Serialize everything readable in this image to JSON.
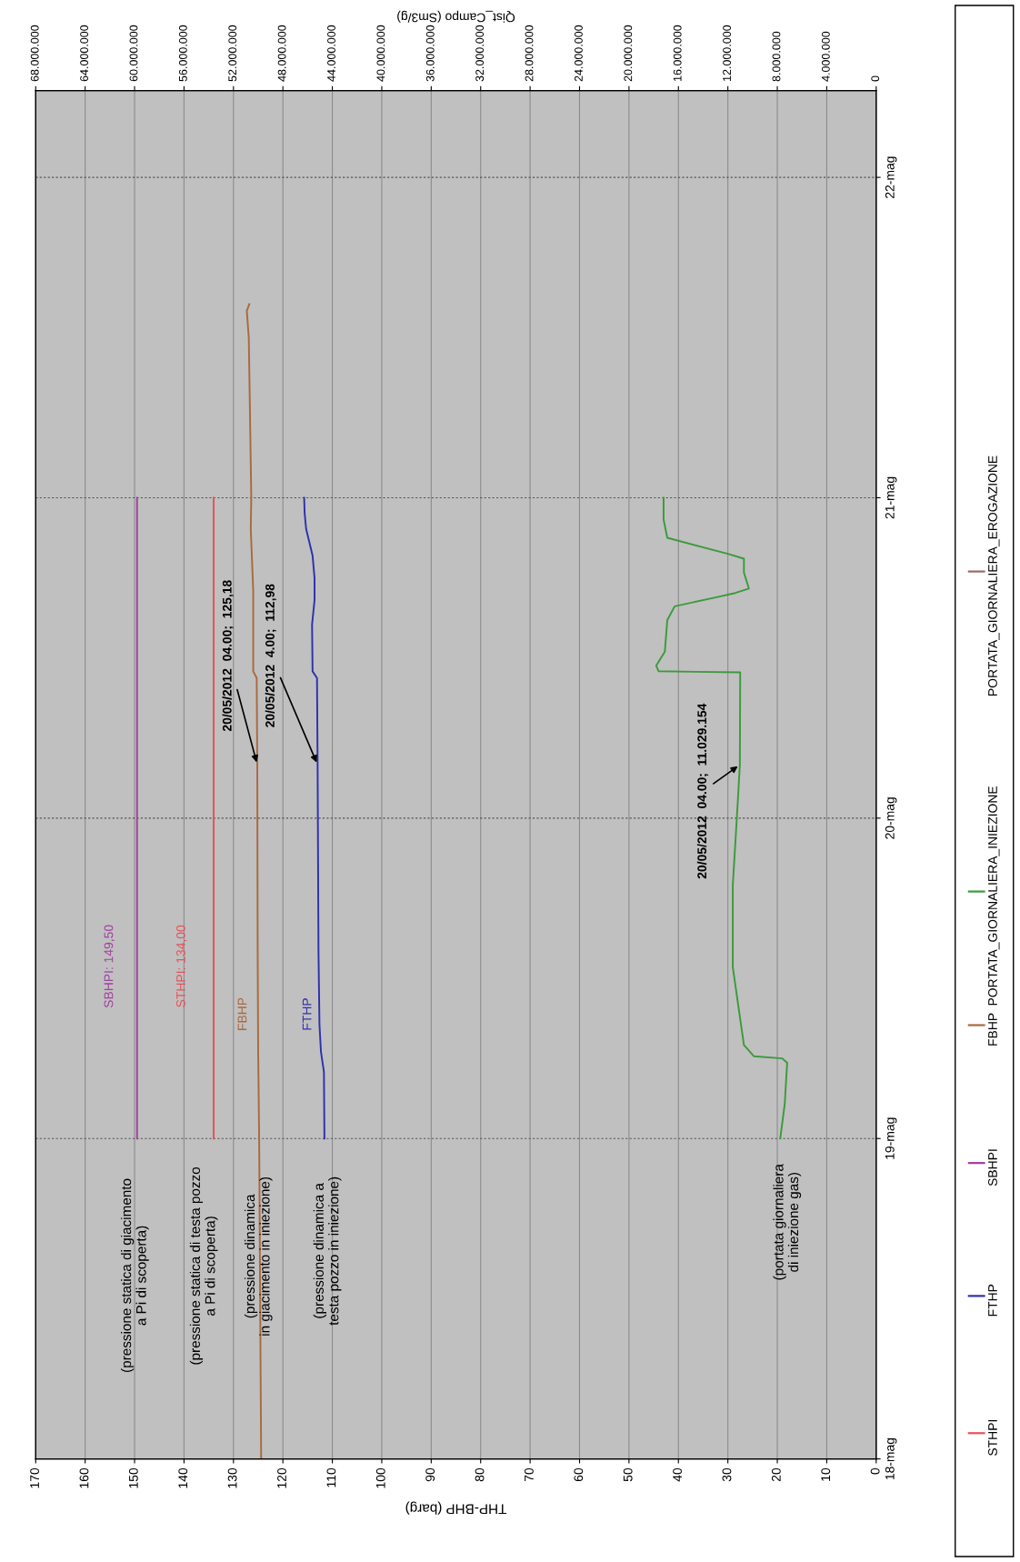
{
  "chart_data": {
    "type": "line",
    "orientation": "horizontal",
    "xlabel": "THP-BHP (barg)",
    "x2label": "Qist_Campo (Sm3/g)",
    "ylim": [
      "2012-05-18T00:00",
      "2012-05-22T06:30"
    ],
    "yticks": [
      {
        "value": "2012-05-18",
        "label": "18-mag"
      },
      {
        "value": "2012-05-19",
        "label": "19-mag"
      },
      {
        "value": "2012-05-20",
        "label": "20-mag"
      },
      {
        "value": "2012-05-21",
        "label": "21-mag"
      },
      {
        "value": "2012-05-22",
        "label": "22-mag"
      }
    ],
    "xlim": [
      170,
      0
    ],
    "xticks": [
      170,
      160,
      150,
      140,
      130,
      120,
      110,
      100,
      90,
      80,
      70,
      60,
      50,
      40,
      30,
      20,
      10,
      0
    ],
    "x2lim": [
      68000000,
      0
    ],
    "x2ticks": [
      {
        "value": 68000000,
        "label": "68.000.000"
      },
      {
        "value": 64000000,
        "label": "64.000.000"
      },
      {
        "value": 60000000,
        "label": "60.000.000"
      },
      {
        "value": 56000000,
        "label": "56.000.000"
      },
      {
        "value": 52000000,
        "label": "52.000.000"
      },
      {
        "value": 48000000,
        "label": "48.000.000"
      },
      {
        "value": 44000000,
        "label": "44.000.000"
      },
      {
        "value": 40000000,
        "label": "40.000.000"
      },
      {
        "value": 36000000,
        "label": "36.000.000"
      },
      {
        "value": 32000000,
        "label": "32.000.000"
      },
      {
        "value": 28000000,
        "label": "28.000.000"
      },
      {
        "value": 24000000,
        "label": "24.000.000"
      },
      {
        "value": 20000000,
        "label": "20.000.000"
      },
      {
        "value": 16000000,
        "label": "16.000.000"
      },
      {
        "value": 12000000,
        "label": "12.000.000"
      },
      {
        "value": 8000000,
        "label": "8.000.000"
      },
      {
        "value": 4000000,
        "label": "4.000.000"
      },
      0
    ],
    "grid": true,
    "legend": "right",
    "marker": "none",
    "line_style": "solid",
    "series": [
      {
        "name": "STHPI",
        "color": "#e8505a",
        "x": [
          "2012-05-19T00:00",
          "2012-05-21T00:00"
        ],
        "values": [
          134.0,
          134.0
        ]
      },
      {
        "name": "FTHP",
        "color": "#3030b0",
        "x": [
          "2012-05-19T00:00",
          "2012-05-19T05:00",
          "2012-05-19T06:30",
          "2012-05-19T08:30",
          "2012-05-19T14:00",
          "2012-05-19T22:00",
          "2012-05-20T04:00",
          "2012-05-20T10:30",
          "2012-05-20T11:00",
          "2012-05-20T14:30",
          "2012-05-20T16:20",
          "2012-05-20T18:00",
          "2012-05-20T19:40",
          "2012-05-20T21:40",
          "2012-05-20T22:50",
          "2012-05-21T00:00"
        ],
        "values": [
          111.6,
          111.7,
          112.3,
          112.6,
          112.8,
          112.9,
          112.98,
          113.1,
          114.0,
          114.1,
          113.6,
          113.6,
          114.0,
          115.3,
          115.6,
          115.7
        ]
      },
      {
        "name": "SBHPI",
        "color": "#a040a0",
        "x": [
          "2012-05-19T00:00",
          "2012-05-21T00:00"
        ],
        "values": [
          149.5,
          149.5
        ]
      },
      {
        "name": "FBHP",
        "color": "#a86a40",
        "x": [
          "2012-05-18T00:00",
          "2012-05-18T12:00",
          "2012-05-19T00:00",
          "2012-05-19T06:30",
          "2012-05-19T14:00",
          "2012-05-20T04:00",
          "2012-05-20T10:30",
          "2012-05-20T11:00",
          "2012-05-20T17:00",
          "2012-05-20T21:40",
          "2012-05-21T00:00",
          "2012-05-21T05:00",
          "2012-05-21T12:00",
          "2012-05-21T14:00",
          "2012-05-21T14:30"
        ],
        "values": [
          124.4,
          124.6,
          124.8,
          125.0,
          125.1,
          125.18,
          125.3,
          126.0,
          126.0,
          126.5,
          126.4,
          126.6,
          126.9,
          127.3,
          126.8
        ]
      },
      {
        "name": "PORTATA_GIORNALIERA_INIEZIONE",
        "color": "#3c9a3c",
        "axis": "x2",
        "x": [
          "2012-05-19T00:00",
          "2012-05-19T02:35",
          "2012-05-19T05:40",
          "2012-05-19T06:00",
          "2012-05-19T06:10",
          "2012-05-19T07:00",
          "2012-05-19T12:50",
          "2012-05-19T19:00",
          "2012-05-20T01:10",
          "2012-05-20T04:00",
          "2012-05-20T10:55",
          "2012-05-20T11:00",
          "2012-05-20T11:25",
          "2012-05-20T12:28",
          "2012-05-20T14:50",
          "2012-05-20T15:52",
          "2012-05-20T16:32",
          "2012-05-20T16:52",
          "2012-05-20T17:12",
          "2012-05-20T18:24",
          "2012-05-20T19:26",
          "2012-05-20T19:48",
          "2012-05-20T21:00",
          "2012-05-20T22:22",
          "2012-05-21T00:00"
        ],
        "values": [
          7760000,
          7400000,
          7200000,
          7600000,
          9900000,
          10700000,
          11600000,
          11600000,
          11200000,
          11029154,
          11000000,
          17600000,
          17800000,
          17100000,
          16900000,
          16300000,
          13000000,
          11400000,
          10300000,
          10700000,
          10700000,
          12000000,
          16900000,
          17200000,
          17200000
        ]
      },
      {
        "name": "PORTATA_GIORNALIERA_EROGAZIONE",
        "color": "#9a6a6a",
        "axis": "x2"
      }
    ],
    "annotations": [
      {
        "text": "20/05/2012  04.00;  125,18",
        "x": 125.18,
        "y": "2012-05-20T04:00"
      },
      {
        "text": "20/05/2012  4.00;  112,98",
        "x": 112.98,
        "y": "2012-05-20T04:00"
      },
      {
        "text": "20/05/2012  04.00;  11.029.154",
        "x": 27.57,
        "y": "2012-05-20T04:00"
      },
      "(pressione statica di giacimento\na Pi di scoperta)",
      "(pressione statica di testa pozzo\na Pi di scoperta)",
      "(pressione dinamica\nin giacimento in iniezione)",
      "(pressione dinamica a\ntesta pozzo in iniezione)",
      "(portata giornaliera\ndi iniezione gas)",
      "SBHPI: 149,50",
      "STHPI: 134,00",
      "FBHP",
      "FTHP"
    ]
  }
}
